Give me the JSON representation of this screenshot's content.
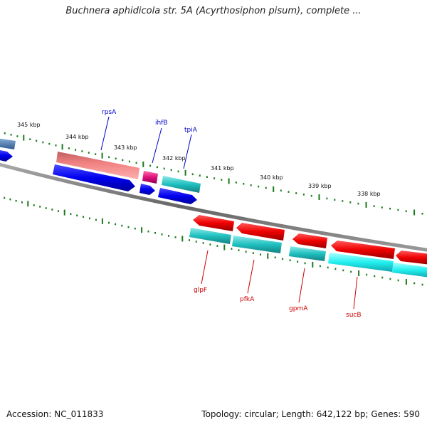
{
  "header": {
    "title": "Buchnera aphidicola str. 5A (Acyrthosiphon pisum), complete ..."
  },
  "footer": {
    "accession": "Accession: NC_011833",
    "summary": "Topology: circular; Length: 642,122 bp; Genes: 590"
  },
  "scale": {
    "labels": [
      "345 kbp",
      "344 kbp",
      "343 kbp",
      "342 kbp",
      "341 kbp",
      "340 kbp",
      "339 kbp",
      "338 kbp"
    ]
  },
  "genes": {
    "top": [
      {
        "name": "rpsA",
        "color": "#0000cc"
      },
      {
        "name": "ihfB",
        "color": "#0000cc"
      },
      {
        "name": "tpiA",
        "color": "#0000cc"
      }
    ],
    "bottom": [
      {
        "name": "glpF",
        "color": "#cc0000"
      },
      {
        "name": "pfkA",
        "color": "#cc0000"
      },
      {
        "name": "gpmA",
        "color": "#cc0000"
      },
      {
        "name": "sucB",
        "color": "#cc0000"
      }
    ]
  },
  "colors": {
    "forward_cds": "#0000ee",
    "reverse_cds": "#ee0000",
    "forward_feature_pink": "#f08080",
    "forward_feature_magenta": "#e0107a",
    "feature_cyan": "#20c0c0",
    "backbone": "#777777",
    "tick_green": "#1a7a1a"
  }
}
